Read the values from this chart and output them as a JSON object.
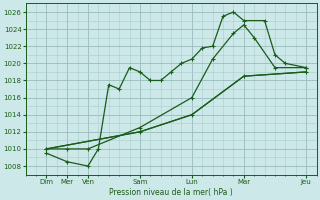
{
  "background_color": "#cce8e8",
  "grid_color_major": "#99bbbb",
  "grid_color_minor": "#aacccc",
  "line_color": "#1a5c1a",
  "marker_color": "#1a5c1a",
  "xlabel_text": "Pression niveau de la mer( hPa )",
  "ylim": [
    1007,
    1027
  ],
  "yticks": [
    1008,
    1010,
    1012,
    1014,
    1016,
    1018,
    1020,
    1022,
    1024,
    1026
  ],
  "xlim": [
    -0.5,
    13.5
  ],
  "x_tick_positions": [
    0.5,
    1.5,
    2.5,
    5.0,
    7.5,
    10.0,
    13.0
  ],
  "x_tick_labels": [
    "Dim",
    "Mer",
    "Ven",
    "Sam",
    "Lun",
    "Mar",
    "Jeu"
  ],
  "series": [
    {
      "x": [
        0.5,
        1.5,
        2.5,
        3.0,
        3.5,
        4.0,
        4.5,
        5.0,
        5.5,
        6.0,
        6.5,
        7.0,
        7.5,
        8.0,
        8.5,
        9.0,
        9.5,
        10.0,
        11.0,
        11.5,
        12.0,
        13.0
      ],
      "y": [
        1009.5,
        1008.5,
        1008.0,
        1010.0,
        1017.5,
        1017.0,
        1019.5,
        1019.0,
        1018.0,
        1018.0,
        1019.0,
        1020.0,
        1020.5,
        1021.8,
        1022.0,
        1025.5,
        1026.0,
        1025.0,
        1025.0,
        1021.0,
        1020.0,
        1019.5
      ]
    },
    {
      "x": [
        0.5,
        1.5,
        2.5,
        5.0,
        7.5,
        8.5,
        9.5,
        10.0,
        10.5,
        11.5,
        13.0
      ],
      "y": [
        1010.0,
        1010.0,
        1010.0,
        1012.5,
        1016.0,
        1020.5,
        1023.5,
        1024.5,
        1023.0,
        1019.5,
        1019.5
      ]
    },
    {
      "x": [
        0.5,
        5.0,
        7.5,
        10.0,
        13.0
      ],
      "y": [
        1010.0,
        1012.0,
        1014.0,
        1018.5,
        1019.0
      ]
    }
  ]
}
